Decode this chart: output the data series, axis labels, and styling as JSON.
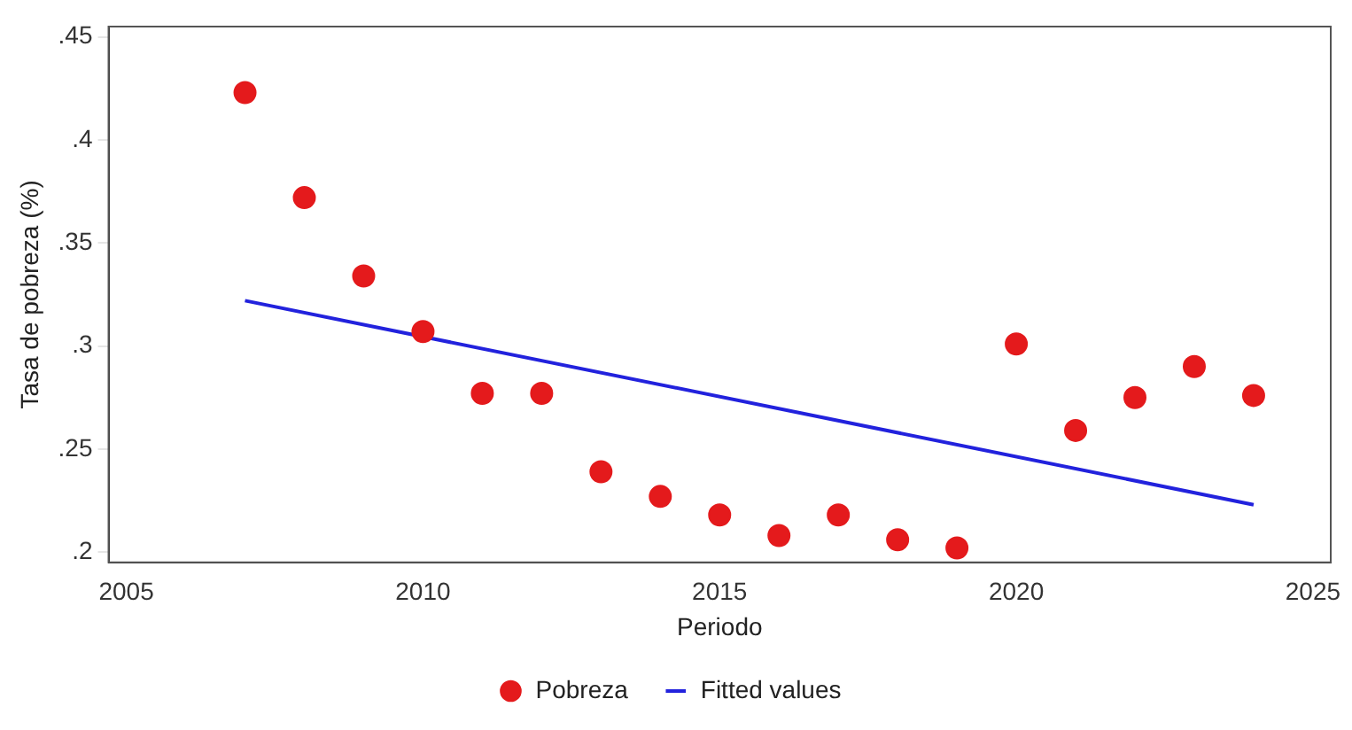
{
  "chart_data": {
    "type": "scatter",
    "xlabel": "Periodo",
    "ylabel": "Tasa de pobreza (%)",
    "xlim": [
      2004.7,
      2025.3
    ],
    "xticks": [
      2005,
      2010,
      2015,
      2020,
      2025
    ],
    "ylim": [
      0.195,
      0.455
    ],
    "yticks": [
      {
        "value": 0.2,
        "label": ".2"
      },
      {
        "value": 0.25,
        "label": ".25"
      },
      {
        "value": 0.3,
        "label": ".3"
      },
      {
        "value": 0.35,
        "label": ".35"
      },
      {
        "value": 0.4,
        "label": ".4"
      },
      {
        "value": 0.45,
        "label": ".45"
      }
    ],
    "grid": false,
    "legend": "bottom",
    "series": [
      {
        "name": "Pobreza",
        "marker": "circle",
        "color": "#e41a1c",
        "x": [
          2007,
          2008,
          2009,
          2010,
          2011,
          2012,
          2013,
          2014,
          2015,
          2016,
          2017,
          2018,
          2019,
          2020,
          2021,
          2022,
          2023,
          2024
        ],
        "values": [
          0.423,
          0.372,
          0.334,
          0.307,
          0.277,
          0.277,
          0.239,
          0.227,
          0.218,
          0.208,
          0.218,
          0.206,
          0.202,
          0.301,
          0.259,
          0.275,
          0.29,
          0.276
        ]
      },
      {
        "name": "Fitted values",
        "type": "line",
        "marker": "none",
        "color": "#2222dd",
        "x": [
          2007,
          2024
        ],
        "values": [
          0.322,
          0.223
        ]
      }
    ]
  }
}
